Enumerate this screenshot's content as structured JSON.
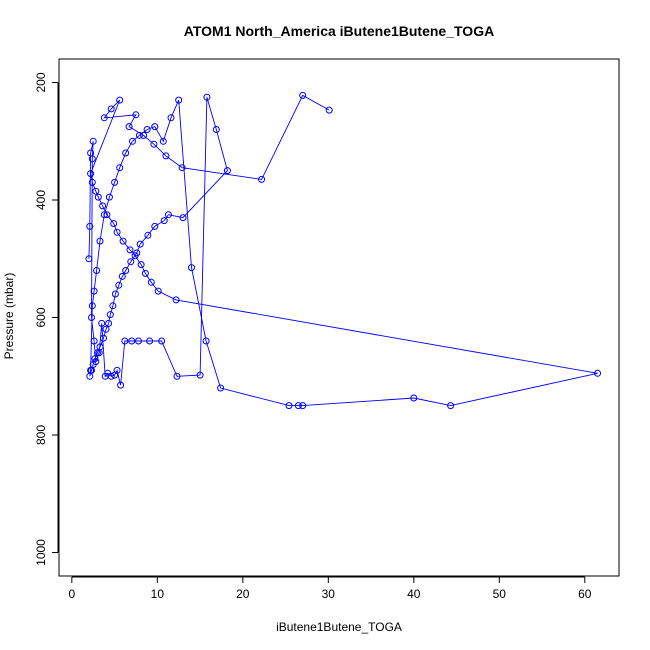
{
  "chart_data": {
    "type": "scatter",
    "title": "ATOM1 North_America iButene1Butene_TOGA",
    "xlabel": "iButene1Butene_TOGA",
    "ylabel": "Pressure (mbar)",
    "xlim": [
      -1.5,
      64
    ],
    "ylim": [
      1040,
      160
    ],
    "y_axis_inverted": true,
    "xticks": [
      0,
      10,
      20,
      30,
      40,
      50,
      60
    ],
    "yticks": [
      200,
      400,
      600,
      800,
      1000
    ],
    "grid": false,
    "legend": "none",
    "color": "#0000ff",
    "points_connected_in_order": true,
    "series": [
      {
        "x": [
          2.0,
          2.1,
          2.2,
          2.5,
          2.4,
          2.3,
          2.6,
          2.8,
          3.2,
          3.5,
          3.9,
          4.2,
          4.6,
          5.0,
          5.3,
          5.7,
          6.2,
          7.0,
          7.8,
          9.1,
          10.5,
          12.3,
          15.0,
          15.8,
          16.9,
          18.2,
          13.0,
          11.3,
          10.8,
          9.7,
          8.9,
          8.0,
          7.6,
          6.9,
          6.3,
          5.9,
          5.5,
          5.1,
          4.8,
          4.5,
          4.3,
          4.0,
          3.7,
          3.3,
          3.0,
          2.7,
          2.5,
          2.3,
          2.1,
          2.2,
          2.4,
          2.6,
          2.9,
          3.3,
          3.8,
          4.4,
          5.0,
          5.6,
          6.3,
          7.1,
          7.9,
          8.8,
          9.7,
          10.7,
          11.6,
          12.5,
          14.0,
          15.7,
          17.4,
          25.4,
          26.5,
          27.0,
          40.0,
          44.3,
          61.5,
          12.2,
          10.1,
          9.3,
          8.6,
          8.1,
          7.4,
          6.8,
          6.0,
          5.3,
          4.9,
          4.1,
          3.6,
          3.1,
          2.8,
          2.4,
          2.2,
          5.6,
          4.6,
          3.8,
          7.5,
          6.7,
          8.4,
          9.6,
          11.0,
          12.9,
          22.2,
          27.0,
          30.1
        ],
        "y": [
          500,
          445,
          320,
          300,
          330,
          600,
          640,
          675,
          660,
          610,
          700,
          695,
          700,
          698,
          690,
          715,
          640,
          640,
          640,
          640,
          640,
          700,
          698,
          225,
          280,
          350,
          430,
          425,
          435,
          445,
          460,
          475,
          490,
          505,
          520,
          530,
          545,
          560,
          580,
          595,
          610,
          620,
          635,
          650,
          660,
          670,
          680,
          690,
          700,
          690,
          580,
          555,
          520,
          470,
          425,
          395,
          370,
          345,
          320,
          300,
          290,
          280,
          275,
          300,
          260,
          230,
          515,
          640,
          720,
          750,
          750,
          750,
          737,
          750,
          695,
          570,
          555,
          540,
          525,
          510,
          495,
          485,
          470,
          455,
          440,
          425,
          410,
          395,
          385,
          370,
          355,
          230,
          245,
          260,
          255,
          275,
          290,
          305,
          325,
          345,
          365,
          222,
          247
        ]
      }
    ]
  }
}
